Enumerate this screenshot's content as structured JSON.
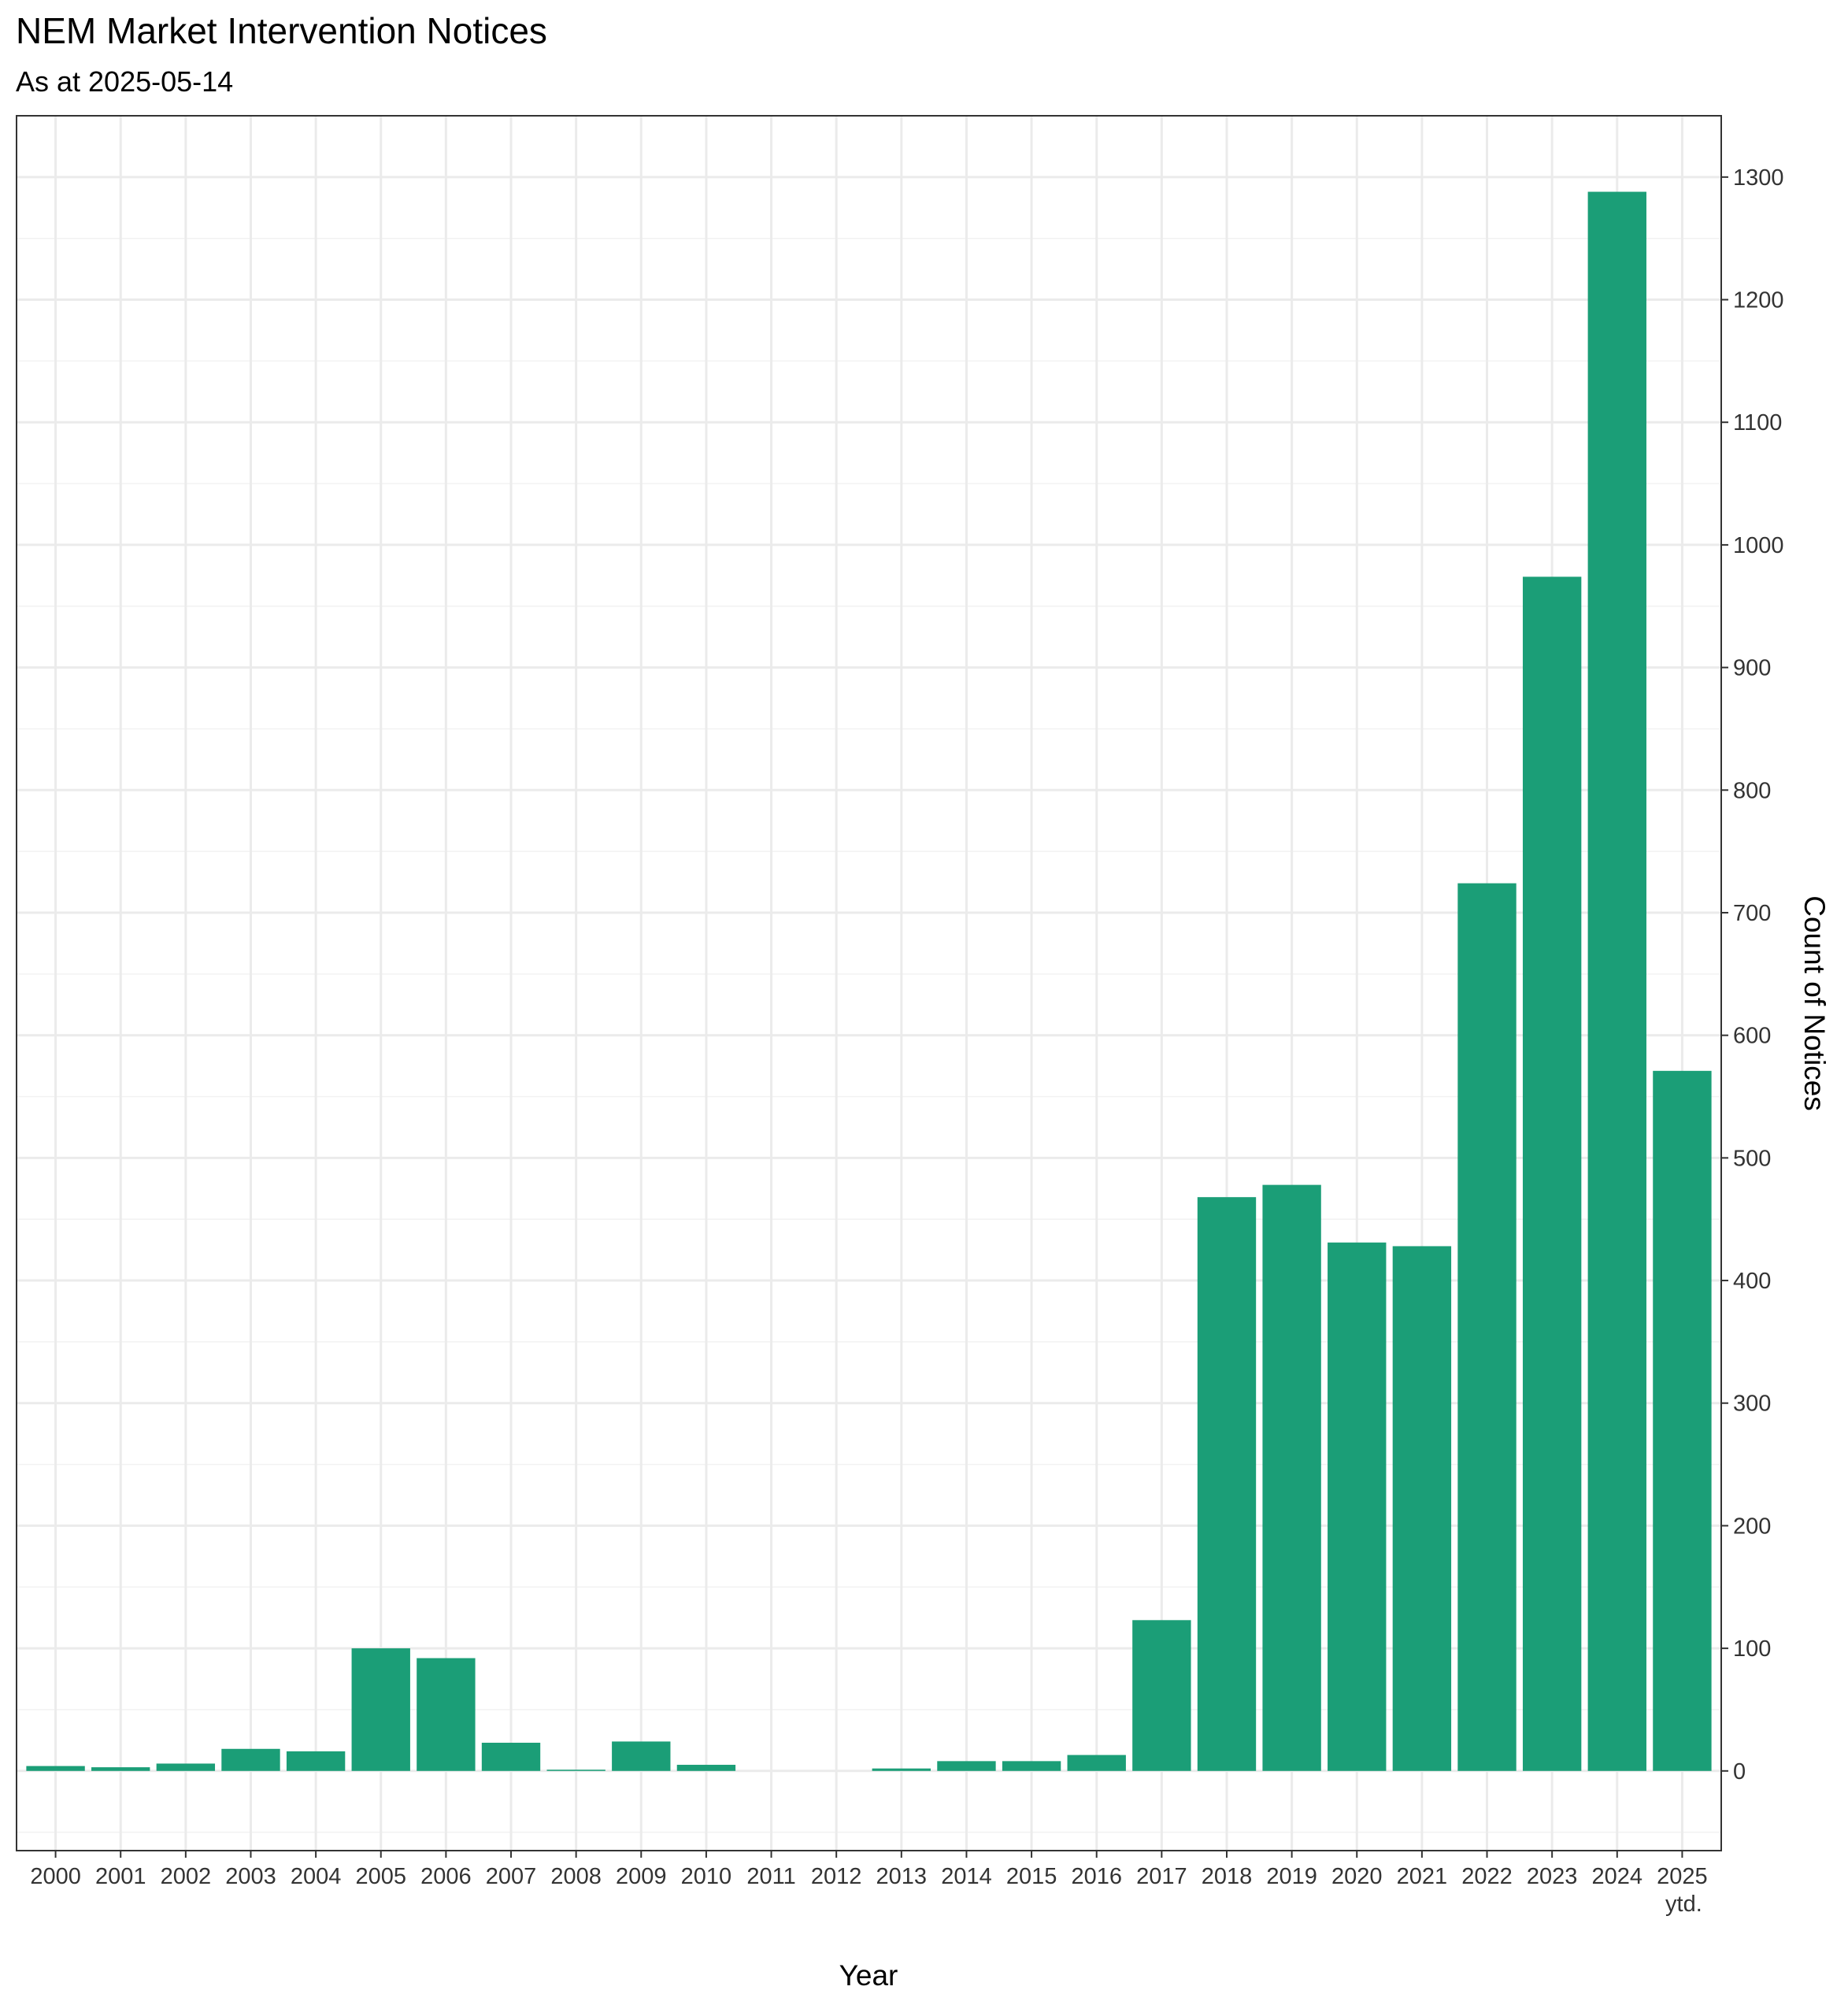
{
  "chart_data": {
    "type": "bar",
    "title": "NEM Market Intervention Notices",
    "subtitle": "As at 2025-05-14",
    "xlabel": "Year",
    "ylabel": "Count of Notices",
    "categories": [
      "2000",
      "2001",
      "2002",
      "2003",
      "2004",
      "2005",
      "2006",
      "2007",
      "2008",
      "2009",
      "2010",
      "2011",
      "2012",
      "2013",
      "2014",
      "2015",
      "2016",
      "2017",
      "2018",
      "2019",
      "2020",
      "2021",
      "2022",
      "2023",
      "2024",
      "2025"
    ],
    "category_sublabels": {
      "2025": "ytd."
    },
    "values": [
      4,
      3,
      6,
      18,
      16,
      100,
      92,
      23,
      1,
      24,
      5,
      0,
      0,
      2,
      8,
      8,
      13,
      123,
      468,
      478,
      431,
      428,
      724,
      974,
      1288,
      571
    ],
    "ylim": [
      -65,
      1350
    ],
    "yticks": [
      0,
      100,
      200,
      300,
      400,
      500,
      600,
      700,
      800,
      900,
      1000,
      1100,
      1200,
      1300
    ],
    "y_axis_position": "right",
    "grid": true,
    "bar_color": "#1b9e77"
  }
}
